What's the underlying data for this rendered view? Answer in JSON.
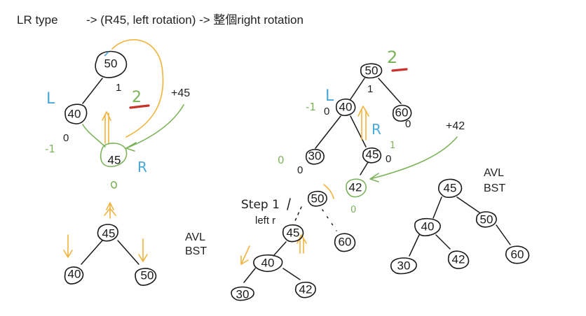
{
  "header": {
    "type_label": "LR type",
    "rule_text": "-> (R45, left rotation) -> 整個right rotation"
  },
  "left_section": {
    "before_tree": {
      "nodes": {
        "a": "50",
        "b": "40",
        "c": "45"
      },
      "balance": {
        "a": "1",
        "b": "0",
        "c": "-1"
      },
      "annotations": {
        "a": "2",
        "b": "L",
        "c": "R",
        "insert": "+45"
      }
    },
    "after_tree": {
      "nodes": {
        "root": "45",
        "left": "40",
        "right": "50"
      },
      "balance": {
        "mid": "0"
      }
    },
    "result_label": [
      "AVL",
      "BST"
    ]
  },
  "right_section": {
    "before_tree": {
      "nodes": {
        "root": "50",
        "l": "40",
        "r": "60",
        "ll": "30",
        "lr": "45",
        "lrl": "42"
      },
      "balance": {
        "root": "1",
        "l": "-1",
        "l_small": "0",
        "r": "0",
        "ll": "0",
        "ll_small": "0",
        "lr": "0",
        "lr_small": "1",
        "lrl": "0"
      },
      "annotations": {
        "root": "2",
        "l": "L",
        "lr": "R",
        "insert": "+42"
      }
    },
    "step_tree": {
      "step_label": "Step 1",
      "step_sub": "left r",
      "nodes": {
        "root": "50",
        "l": "45",
        "r": "60",
        "ll": "40",
        "lll": "30",
        "llr": "42"
      }
    },
    "after_tree": {
      "nodes": {
        "root": "45",
        "l": "40",
        "r": "50",
        "ll": "30",
        "lr": "42",
        "rr": "60"
      }
    },
    "result_label": [
      "AVL",
      "BST"
    ]
  }
}
